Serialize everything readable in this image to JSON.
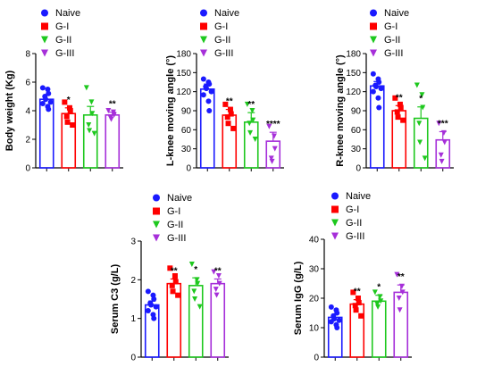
{
  "colors": {
    "Naive": "#1a1aff",
    "G-I": "#ff0000",
    "G-II": "#1ec81e",
    "G-III": "#a62fd9"
  },
  "chart_data": [
    {
      "type": "bar",
      "categories": [
        "Naive",
        "G-I",
        "G-II",
        "G-III"
      ],
      "ylabel": "Body weight (Kg)",
      "ylim": [
        0,
        8
      ],
      "yticks": [
        0,
        2,
        4,
        6,
        8
      ],
      "series": [
        {
          "name": "Naive",
          "marker": "circle"
        },
        {
          "name": "G-I",
          "marker": "square"
        },
        {
          "name": "G-II",
          "marker": "triangle-down"
        },
        {
          "name": "G-III",
          "marker": "triangle-down"
        }
      ],
      "values": [
        4.8,
        3.8,
        3.7,
        3.7
      ],
      "errors": [
        0.3,
        0.4,
        0.6,
        0.2
      ],
      "significance": [
        "",
        "*",
        "",
        "**"
      ],
      "points": [
        [
          5.6,
          5.5,
          5.2,
          5.0,
          4.8,
          4.6,
          4.5,
          4.3,
          4.1
        ],
        [
          4.6,
          4.2,
          4.0,
          3.6,
          3.2,
          3.0
        ],
        [
          5.6,
          4.6,
          3.8,
          3.0,
          2.6,
          2.4
        ],
        [
          4.0,
          3.9,
          3.7,
          3.5,
          3.4
        ]
      ]
    },
    {
      "type": "bar",
      "categories": [
        "Naive",
        "G-I",
        "G-II",
        "G-III"
      ],
      "ylabel": "L-knee moving angle (°)",
      "ylim": [
        0,
        180
      ],
      "yticks": [
        0,
        30,
        60,
        90,
        120,
        150,
        180
      ],
      "series": [
        {
          "name": "Naive",
          "marker": "circle"
        },
        {
          "name": "G-I",
          "marker": "square"
        },
        {
          "name": "G-II",
          "marker": "triangle-down"
        },
        {
          "name": "G-III",
          "marker": "triangle-down"
        }
      ],
      "values": [
        124,
        83,
        72,
        42
      ],
      "errors": [
        8,
        9,
        15,
        14
      ],
      "significance": [
        "",
        "**",
        "**",
        "****"
      ],
      "points": [
        [
          140,
          135,
          132,
          128,
          125,
          120,
          115,
          105,
          90
        ],
        [
          100,
          92,
          85,
          80,
          70,
          62
        ],
        [
          100,
          90,
          75,
          70,
          55,
          45
        ],
        [
          65,
          50,
          30,
          15,
          10
        ]
      ]
    },
    {
      "type": "bar",
      "categories": [
        "Naive",
        "G-I",
        "G-II",
        "G-III"
      ],
      "ylabel": "R-knee moving angle (°)",
      "ylim": [
        0,
        180
      ],
      "yticks": [
        0,
        30,
        60,
        90,
        120,
        150,
        180
      ],
      "series": [
        {
          "name": "Naive",
          "marker": "circle"
        },
        {
          "name": "G-I",
          "marker": "square"
        },
        {
          "name": "G-II",
          "marker": "triangle-down"
        },
        {
          "name": "G-III",
          "marker": "triangle-down"
        }
      ],
      "values": [
        129,
        90,
        78,
        44
      ],
      "errors": [
        7,
        8,
        18,
        13
      ],
      "significance": [
        "",
        "**",
        "*",
        "***"
      ],
      "points": [
        [
          148,
          140,
          135,
          130,
          128,
          125,
          120,
          110,
          95
        ],
        [
          110,
          100,
          95,
          88,
          80,
          75
        ],
        [
          130,
          115,
          95,
          70,
          40,
          15
        ],
        [
          70,
          55,
          40,
          20,
          10
        ]
      ]
    },
    {
      "type": "bar",
      "categories": [
        "Naive",
        "G-I",
        "G-II",
        "G-III"
      ],
      "ylabel": "Serum C3 (g/L)",
      "ylim": [
        0,
        3
      ],
      "yticks": [
        0,
        1,
        2,
        3
      ],
      "series": [
        {
          "name": "Naive",
          "marker": "circle"
        },
        {
          "name": "G-I",
          "marker": "square"
        },
        {
          "name": "G-II",
          "marker": "triangle-down"
        },
        {
          "name": "G-III",
          "marker": "triangle-down"
        }
      ],
      "values": [
        1.35,
        1.9,
        1.85,
        1.9
      ],
      "errors": [
        0.1,
        0.12,
        0.2,
        0.12
      ],
      "significance": [
        "",
        "**",
        "*",
        "**"
      ],
      "points": [
        [
          1.7,
          1.6,
          1.5,
          1.4,
          1.35,
          1.3,
          1.2,
          1.1,
          1.0
        ],
        [
          2.3,
          2.1,
          1.95,
          1.85,
          1.7,
          1.6
        ],
        [
          2.4,
          2.0,
          1.9,
          1.7,
          1.5,
          1.3
        ],
        [
          2.2,
          2.1,
          1.9,
          1.75,
          1.6
        ]
      ]
    },
    {
      "type": "bar",
      "categories": [
        "Naive",
        "G-I",
        "G-II",
        "G-III"
      ],
      "ylabel": "Serum IgG (g/L)",
      "ylim": [
        0,
        40
      ],
      "yticks": [
        0,
        10,
        20,
        30,
        40
      ],
      "series": [
        {
          "name": "Naive",
          "marker": "circle"
        },
        {
          "name": "G-I",
          "marker": "square"
        },
        {
          "name": "G-II",
          "marker": "triangle-down"
        },
        {
          "name": "G-III",
          "marker": "triangle-down"
        }
      ],
      "values": [
        13.5,
        18,
        19,
        22
      ],
      "errors": [
        1.0,
        1.5,
        2.0,
        2.5
      ],
      "significance": [
        "",
        "**",
        "*",
        "**"
      ],
      "points": [
        [
          17,
          16,
          15,
          14,
          13,
          12.5,
          12,
          11,
          10
        ],
        [
          22,
          20,
          18.5,
          17.5,
          16,
          14
        ],
        [
          22,
          20.5,
          19,
          18,
          17
        ],
        [
          28,
          24,
          22,
          20,
          16
        ]
      ]
    }
  ]
}
